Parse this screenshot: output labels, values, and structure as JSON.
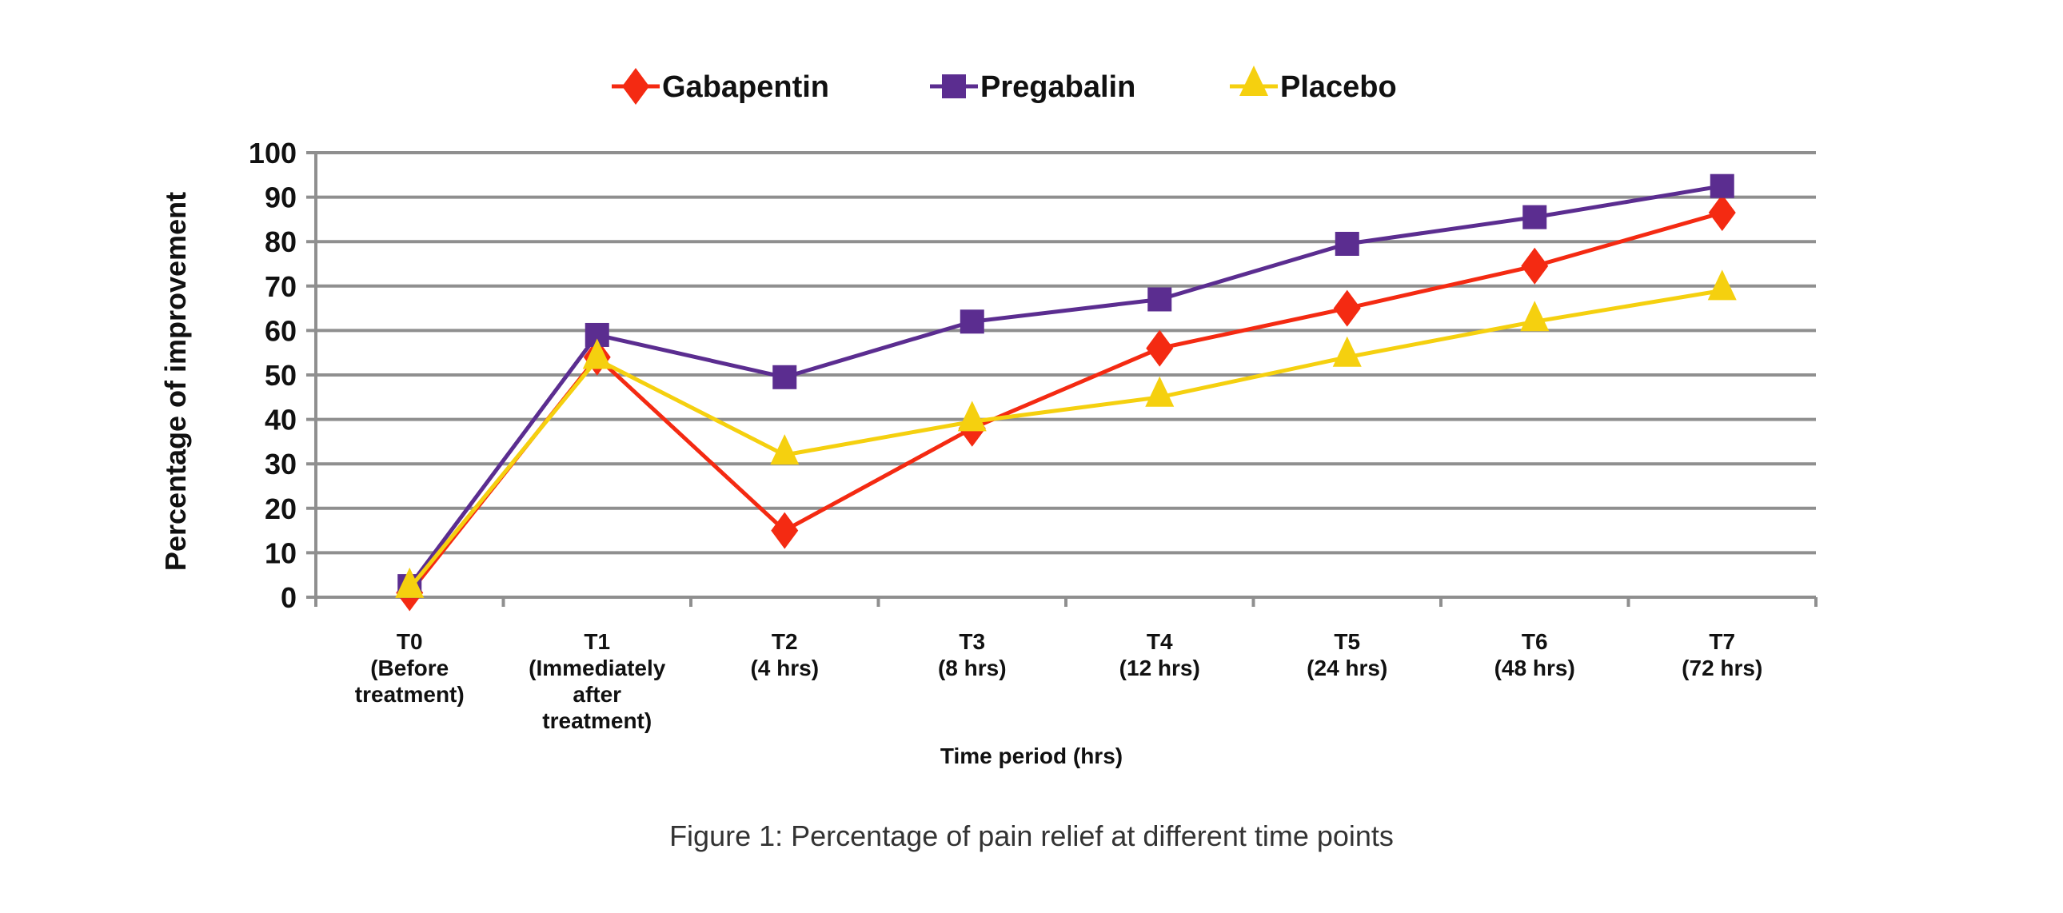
{
  "chart_data": {
    "type": "line",
    "title": "",
    "caption": "Figure 1: Percentage of pain relief at different time points",
    "xlabel": "Time period (hrs)",
    "ylabel": "Percentage of improvement",
    "ylim": [
      0,
      100
    ],
    "yticks": [
      0,
      10,
      20,
      30,
      40,
      50,
      60,
      70,
      80,
      90,
      100
    ],
    "grid": true,
    "legend_position": "top-center",
    "categories": [
      [
        "T0",
        "(Before",
        "treatment)"
      ],
      [
        "T1",
        "(Immediately",
        "after",
        "treatment)"
      ],
      [
        "T2",
        "(4 hrs)"
      ],
      [
        "T3",
        "(8 hrs)"
      ],
      [
        "T4",
        "(12 hrs)"
      ],
      [
        "T5",
        "(24 hrs)"
      ],
      [
        "T6",
        "(48 hrs)"
      ],
      [
        "T7",
        "(72 hrs)"
      ]
    ],
    "series": [
      {
        "name": "Gabapentin",
        "color": "#F42A12",
        "marker": "diamond",
        "values": [
          1,
          54,
          15,
          38,
          56,
          65,
          74.5,
          86.5
        ]
      },
      {
        "name": "Pregabalin",
        "color": "#5B2D90",
        "marker": "square",
        "values": [
          2.5,
          59,
          49.5,
          62,
          67,
          79.5,
          85.5,
          92.5
        ]
      },
      {
        "name": "Placebo",
        "color": "#F5D00F",
        "marker": "triangle",
        "values": [
          2,
          53.5,
          32,
          39.5,
          45,
          54,
          62,
          69
        ]
      }
    ]
  }
}
